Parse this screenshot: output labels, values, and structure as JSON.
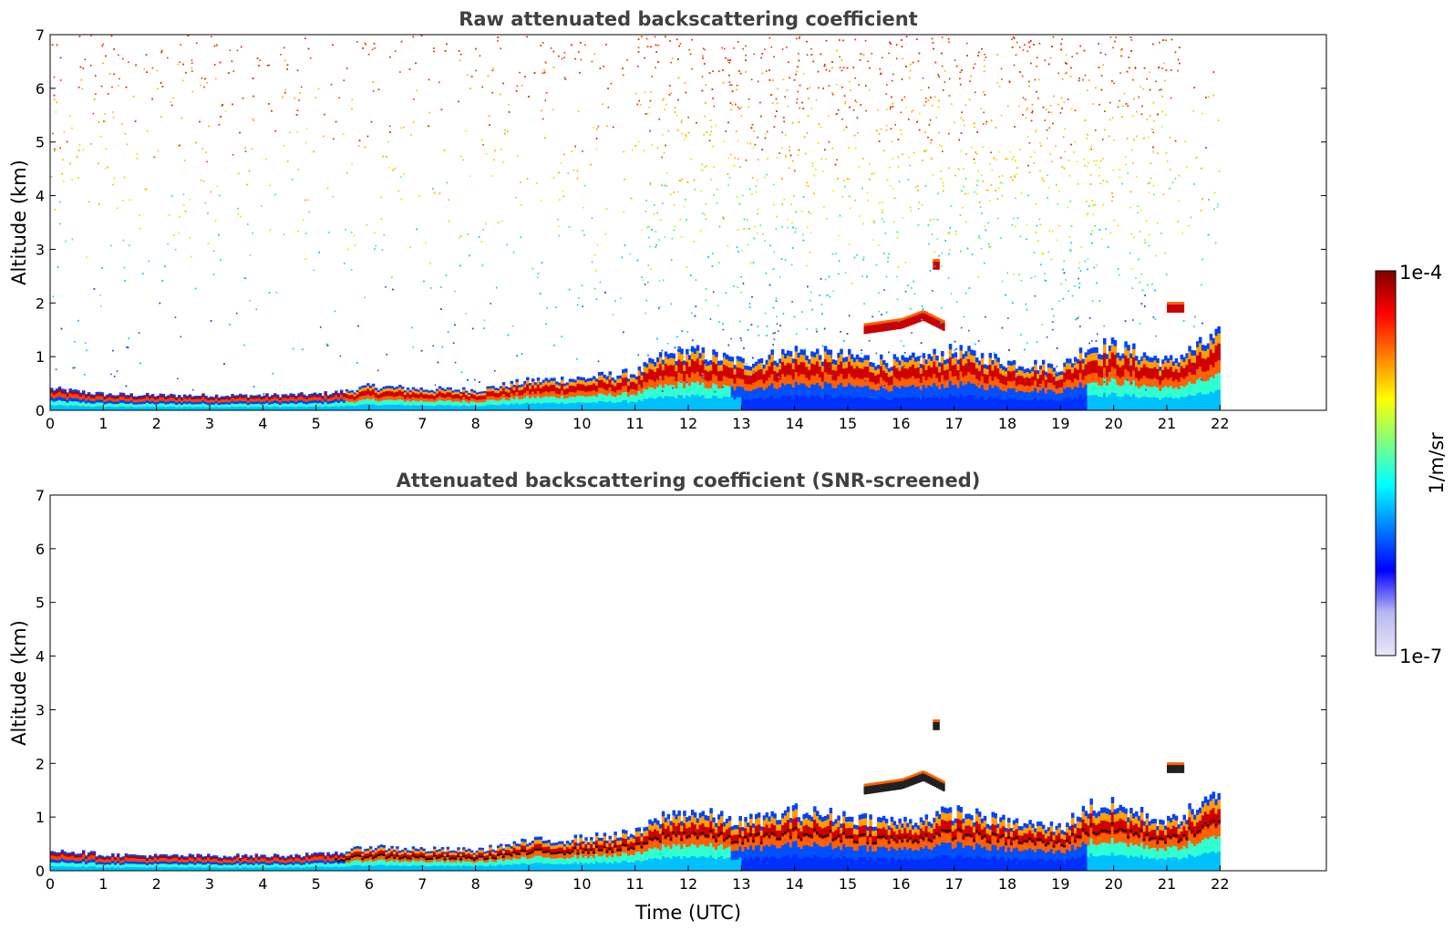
{
  "chart_data": [
    {
      "type": "heatmap",
      "title": "Raw attenuated backscattering coefficient",
      "xlabel": "",
      "ylabel": "Altitude (km)",
      "xlim": [
        0,
        24
      ],
      "ylim": [
        0,
        7
      ],
      "xticks": [
        "0",
        "1",
        "2",
        "3",
        "4",
        "5",
        "6",
        "7",
        "8",
        "9",
        "10",
        "11",
        "12",
        "13",
        "14",
        "15",
        "16",
        "17",
        "18",
        "19",
        "20",
        "21",
        "22"
      ],
      "yticks": [
        "0",
        "1",
        "2",
        "3",
        "4",
        "5",
        "6",
        "7"
      ],
      "data_extent_x": [
        0,
        22
      ],
      "grid": false,
      "colorscale": "jet",
      "noise_top": true,
      "surface_layer": {
        "x": [
          0,
          1,
          2,
          3,
          4,
          5,
          5.5,
          6,
          7,
          8,
          9,
          10,
          11,
          11.5,
          12,
          13,
          14,
          15,
          16,
          17,
          18,
          19,
          19.5,
          20,
          21,
          22
        ],
        "top_km": [
          0.4,
          0.3,
          0.28,
          0.28,
          0.28,
          0.3,
          0.35,
          0.45,
          0.4,
          0.38,
          0.55,
          0.6,
          0.7,
          1.0,
          1.1,
          0.9,
          1.1,
          1.0,
          0.9,
          1.1,
          0.9,
          0.8,
          1.2,
          1.2,
          0.9,
          1.4
        ]
      },
      "cloud_layers": [
        {
          "x": [
            15.3,
            16.0,
            16.4,
            16.8
          ],
          "alt_km": [
            1.5,
            1.6,
            1.75,
            1.55
          ]
        },
        {
          "x": [
            21.0,
            21.3
          ],
          "alt_km": [
            1.9,
            1.9
          ]
        },
        {
          "x": [
            16.6,
            16.7
          ],
          "alt_km": [
            2.7,
            2.7
          ]
        }
      ]
    },
    {
      "type": "heatmap",
      "title": "Attenuated backscattering coefficient (SNR-screened)",
      "xlabel": "Time (UTC)",
      "ylabel": "Altitude (km)",
      "xlim": [
        0,
        24
      ],
      "ylim": [
        0,
        7
      ],
      "xticks": [
        "0",
        "1",
        "2",
        "3",
        "4",
        "5",
        "6",
        "7",
        "8",
        "9",
        "10",
        "11",
        "12",
        "13",
        "14",
        "15",
        "16",
        "17",
        "18",
        "19",
        "20",
        "21",
        "22"
      ],
      "yticks": [
        "0",
        "1",
        "2",
        "3",
        "4",
        "5",
        "6",
        "7"
      ],
      "data_extent_x": [
        0,
        22
      ],
      "grid": false,
      "colorscale": "jet",
      "noise_top": false,
      "surface_layer": {
        "x": [
          0,
          1,
          2,
          3,
          4,
          5,
          5.5,
          6,
          7,
          8,
          9,
          10,
          11,
          11.5,
          12,
          13,
          14,
          15,
          16,
          17,
          18,
          19,
          19.5,
          20,
          21,
          22
        ],
        "top_km": [
          0.4,
          0.3,
          0.28,
          0.28,
          0.28,
          0.3,
          0.35,
          0.45,
          0.4,
          0.38,
          0.55,
          0.6,
          0.7,
          1.0,
          1.1,
          0.9,
          1.1,
          1.0,
          0.9,
          1.1,
          0.9,
          0.8,
          1.2,
          1.2,
          0.9,
          1.4
        ]
      },
      "cloud_layers": [
        {
          "x": [
            15.3,
            16.0,
            16.4,
            16.8
          ],
          "alt_km": [
            1.5,
            1.6,
            1.75,
            1.55
          ]
        },
        {
          "x": [
            21.0,
            21.3
          ],
          "alt_km": [
            1.9,
            1.9
          ]
        },
        {
          "x": [
            16.6,
            16.7
          ],
          "alt_km": [
            2.7,
            2.7
          ]
        }
      ]
    }
  ],
  "colorbar": {
    "max_label": "1e-4",
    "min_label": "1e-7",
    "label": "1/m/sr",
    "colors": [
      "#e8e8f8",
      "#b8b8f0",
      "#0000ff",
      "#0080ff",
      "#00ffff",
      "#80ff80",
      "#ffff00",
      "#ff8000",
      "#ff0000",
      "#800000"
    ]
  }
}
